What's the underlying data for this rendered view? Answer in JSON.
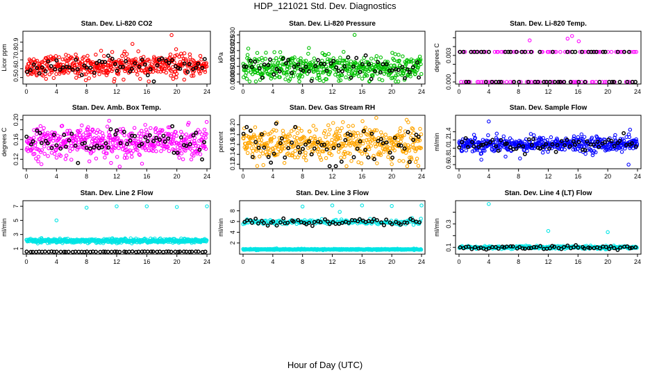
{
  "page": {
    "title": "HDP_121021  Std. Dev. Diagnostics",
    "xlabel": "Hour of Day (UTC)"
  },
  "chart_data": [
    {
      "type": "scatter",
      "title": "Stan. Dev. Li-820 CO2",
      "ylabel": "Licor ppm",
      "xlim": [
        0,
        24
      ],
      "xticks": [
        0,
        4,
        8,
        12,
        16,
        20,
        24
      ],
      "ylim": [
        0.45,
        1.0
      ],
      "yticks": [
        0.5,
        0.6,
        0.7,
        0.8,
        0.9
      ],
      "ytick_labels": [
        "0.5",
        "0.6",
        "0.7",
        "0.8",
        "0.9"
      ],
      "series": [
        {
          "color": "#ff0000",
          "mean": 0.63,
          "spread": 0.06,
          "count": 480
        },
        {
          "color": "#000000",
          "mean": 0.62,
          "spread": 0.06,
          "count": 60
        }
      ],
      "outliers": [
        [
          19.3,
          0.98
        ],
        [
          14.1,
          0.88
        ],
        [
          7.9,
          0.47
        ],
        [
          19.9,
          0.82
        ]
      ]
    },
    {
      "type": "scatter",
      "title": "Stan. Dev. Li-820 Pressure",
      "ylabel": "kPa",
      "xlim": [
        0,
        24
      ],
      "xticks": [
        0,
        4,
        8,
        12,
        16,
        20,
        24
      ],
      "ylim": [
        0.0,
        0.031
      ],
      "yticks": [
        0.0,
        0.005,
        0.01,
        0.015,
        0.02,
        0.025,
        0.03
      ],
      "ytick_labels": [
        "0.000",
        "0.005",
        "0.010",
        "0.015",
        "0.020",
        "0.025",
        "0.030"
      ],
      "series": [
        {
          "color": "#00c000",
          "mean": 0.009,
          "spread": 0.004,
          "count": 480
        },
        {
          "color": "#000000",
          "mean": 0.008,
          "spread": 0.004,
          "count": 60
        }
      ],
      "outliers": [
        [
          15.0,
          0.03
        ],
        [
          5.0,
          0.019
        ],
        [
          0.5,
          0.002
        ]
      ]
    },
    {
      "type": "scatter",
      "title": "Stan. Dev. Li-820 Temp.",
      "ylabel": "degrees C",
      "xlim": [
        0,
        24
      ],
      "xticks": [
        0,
        4,
        8,
        12,
        16,
        20,
        24
      ],
      "ylim": [
        0.0,
        0.0055
      ],
      "yticks": [
        0.0,
        0.001,
        0.002,
        0.003,
        0.004,
        0.005
      ],
      "ytick_labels": [
        "0.000",
        "",
        "",
        "0.003",
        "",
        ""
      ],
      "series": [
        {
          "color": "#ff00ff",
          "levels": [
            0.0,
            0.0034
          ],
          "count": 120
        },
        {
          "color": "#000000",
          "levels": [
            0.0,
            0.0034
          ],
          "count": 60
        }
      ],
      "outliers": [
        [
          9.5,
          0.0047
        ],
        [
          15.2,
          0.0052
        ],
        [
          14.6,
          0.0049
        ],
        [
          16.1,
          0.0046
        ]
      ]
    },
    {
      "type": "scatter",
      "title": "Stan. Dev. Amb. Box Temp.",
      "ylabel": "degrees C",
      "xlim": [
        0,
        24
      ],
      "xticks": [
        0,
        4,
        8,
        12,
        16,
        20,
        24
      ],
      "ylim": [
        0.105,
        0.205
      ],
      "yticks": [
        0.12,
        0.14,
        0.16,
        0.18,
        0.2
      ],
      "ytick_labels": [
        "0.12",
        "",
        "0.16",
        "",
        "0.20"
      ],
      "series": [
        {
          "color": "#ff00ff",
          "mean": 0.155,
          "spread": 0.015,
          "count": 480
        },
        {
          "color": "#000000",
          "mean": 0.152,
          "spread": 0.016,
          "count": 60
        }
      ],
      "outliers": [
        [
          2.0,
          0.11
        ],
        [
          11.0,
          0.198
        ]
      ]
    },
    {
      "type": "scatter",
      "title": "Stan. Dev. Gas Stream RH",
      "ylabel": "percent",
      "xlim": [
        0,
        24
      ],
      "xticks": [
        0,
        4,
        8,
        12,
        16,
        20,
        24
      ],
      "ylim": [
        0.115,
        0.215
      ],
      "yticks": [
        0.12,
        0.14,
        0.16,
        0.18,
        0.2
      ],
      "ytick_labels": [
        "0.12",
        "0.14",
        "0.16",
        "0.18",
        "0.20"
      ],
      "series": [
        {
          "color": "#ffa500",
          "mean": 0.16,
          "spread": 0.018,
          "count": 480
        },
        {
          "color": "#000000",
          "mean": 0.16,
          "spread": 0.02,
          "count": 60
        }
      ],
      "outliers": [
        [
          20.0,
          0.12
        ],
        [
          22.0,
          0.21
        ]
      ]
    },
    {
      "type": "scatter",
      "title": "Stan. Dev. Sample Flow",
      "ylabel": "ml/min",
      "xlim": [
        0,
        24
      ],
      "xticks": [
        0,
        4,
        8,
        12,
        16,
        20,
        24
      ],
      "ylim": [
        0.55,
        1.75
      ],
      "yticks": [
        0.6,
        0.8,
        1.0,
        1.2,
        1.4
      ],
      "ytick_labels": [
        "0.6",
        "0.8",
        "1.0",
        "1.2",
        "1.4"
      ],
      "series": [
        {
          "color": "#0000ff",
          "mean": 1.1,
          "spread": 0.09,
          "count": 480
        },
        {
          "color": "#000000",
          "mean": 1.08,
          "spread": 0.08,
          "count": 60
        }
      ],
      "outliers": [
        [
          4.0,
          1.65
        ],
        [
          3.0,
          0.72
        ],
        [
          22.8,
          0.6
        ],
        [
          23.0,
          1.45
        ],
        [
          8.2,
          0.75
        ]
      ]
    },
    {
      "type": "scatter",
      "title": "Stan. Dev. Line 2 Flow",
      "ylabel": "ml/min",
      "xlim": [
        0,
        24
      ],
      "xticks": [
        0,
        4,
        8,
        12,
        16,
        20,
        24
      ],
      "ylim": [
        0.5,
        7.5
      ],
      "yticks": [
        1,
        3,
        5,
        7
      ],
      "ytick_labels": [
        "1",
        "3",
        "5",
        "7"
      ],
      "series": [
        {
          "color": "#00e5e5",
          "mean": 2.1,
          "spread": 0.15,
          "count": 480
        },
        {
          "color": "#000000",
          "mean": 0.55,
          "spread": 0.02,
          "count": 60
        }
      ],
      "outliers": [
        [
          4.0,
          5.0
        ],
        [
          8.0,
          6.8
        ],
        [
          12.0,
          7.0
        ],
        [
          16.0,
          7.0
        ],
        [
          20.0,
          6.9
        ],
        [
          24.0,
          7.0
        ],
        [
          2.0,
          2.5
        ]
      ]
    },
    {
      "type": "scatter",
      "title": "Stan. Dev. Line 3 Flow",
      "ylabel": "ml/min",
      "xlim": [
        0,
        24
      ],
      "xticks": [
        0,
        4,
        8,
        12,
        16,
        20,
        24
      ],
      "ylim": [
        0.3,
        9.5
      ],
      "yticks": [
        2,
        4,
        6,
        8
      ],
      "ytick_labels": [
        "2",
        "4",
        "6",
        "8"
      ],
      "series": [
        {
          "color": "#00e5e5",
          "mean": 0.8,
          "spread": 0.05,
          "count": 480
        },
        {
          "color": "#00e5e5",
          "mean": 5.9,
          "spread": 0.25,
          "count": 200
        },
        {
          "color": "#000000",
          "mean": 5.9,
          "spread": 0.3,
          "count": 60
        }
      ],
      "outliers": [
        [
          8.0,
          8.8
        ],
        [
          12.0,
          9.0
        ],
        [
          13.0,
          7.8
        ],
        [
          16.0,
          9.0
        ],
        [
          20.0,
          8.9
        ],
        [
          24.0,
          9.0
        ]
      ]
    },
    {
      "type": "scatter",
      "title": "Stan. Dev. Line 4 (LT) Flow",
      "ylabel": "ml/min",
      "xlim": [
        0,
        24
      ],
      "xticks": [
        0,
        4,
        8,
        12,
        16,
        20,
        24
      ],
      "ylim": [
        0.06,
        0.48
      ],
      "yticks": [
        0.1,
        0.2,
        0.3,
        0.4
      ],
      "ytick_labels": [
        "0.1",
        "",
        "0.3",
        ""
      ],
      "series": [
        {
          "color": "#00e5e5",
          "mean": 0.1,
          "spread": 0.006,
          "count": 300
        },
        {
          "color": "#000000",
          "mean": 0.1,
          "spread": 0.008,
          "count": 60
        }
      ],
      "outliers": [
        [
          4.0,
          0.47
        ],
        [
          12.0,
          0.24
        ],
        [
          20.0,
          0.23
        ]
      ]
    }
  ]
}
